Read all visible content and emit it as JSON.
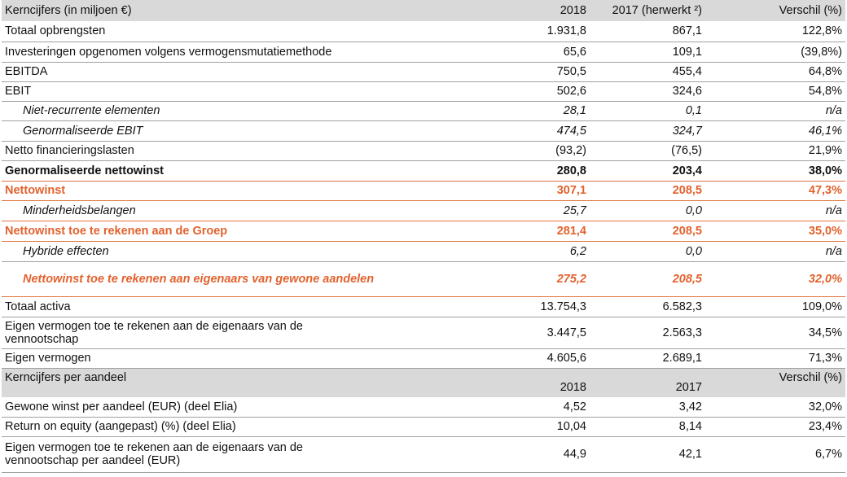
{
  "table": {
    "header": [
      "Kerncijfers (in miljoen €)",
      "2018",
      "2017 (herwerkt ²)",
      "Verschil (%)"
    ],
    "rows": [
      [
        "Totaal opbrengsten",
        "1.931,8",
        "867,1",
        "122,8%"
      ],
      [
        "Investeringen opgenomen volgens vermogensmutatiemethode",
        "65,6",
        "109,1",
        "(39,8%)"
      ],
      [
        "EBITDA",
        "750,5",
        "455,4",
        "64,8%"
      ],
      [
        "EBIT",
        "502,6",
        "324,6",
        "54,8%"
      ],
      [
        "Niet-recurrente elementen",
        "28,1",
        "0,1",
        "n/a"
      ],
      [
        "Genormaliseerde EBIT",
        "474,5",
        "324,7",
        "46,1%"
      ],
      [
        "Netto financieringslasten",
        "(93,2)",
        "(76,5)",
        "21,9%"
      ],
      [
        "Genormaliseerde nettowinst",
        "280,8",
        "203,4",
        "38,0%"
      ],
      [
        "Nettowinst",
        "307,1",
        "208,5",
        "47,3%"
      ],
      [
        "Minderheidsbelangen",
        "25,7",
        "0,0",
        "n/a"
      ],
      [
        "Nettowinst toe te rekenen aan de Groep",
        "281,4",
        "208,5",
        "35,0%"
      ],
      [
        "Hybride effecten",
        "6,2",
        "0,0",
        "n/a"
      ],
      [
        "Nettowinst toe te rekenen aan eigenaars van gewone aandelen",
        "275,2",
        "208,5",
        "32,0%"
      ],
      [
        "Totaal activa",
        "13.754,3",
        "6.582,3",
        "109,0%"
      ],
      [
        "Eigen vermogen toe te rekenen aan de eigenaars van de\nvennootschap",
        "3.447,5",
        "2.563,3",
        "34,5%"
      ],
      [
        "Eigen vermogen",
        "4.605,6",
        "2.689,1",
        "71,3%"
      ]
    ],
    "header2": [
      "Kerncijfers  per aandeel",
      "2018",
      "2017",
      "Verschil (%)"
    ],
    "rows2": [
      [
        "Gewone winst per aandeel (EUR) (deel Elia)",
        "4,52",
        "3,42",
        "32,0%"
      ],
      [
        "Return on equity (aangepast) (%) (deel Elia)",
        "10,04",
        "8,14",
        "23,4%"
      ],
      [
        "Eigen vermogen toe te rekenen aan de eigenaars van de\nvennootschap per aandeel (EUR)",
        "44,9",
        "42,1",
        "6,7%"
      ]
    ]
  }
}
